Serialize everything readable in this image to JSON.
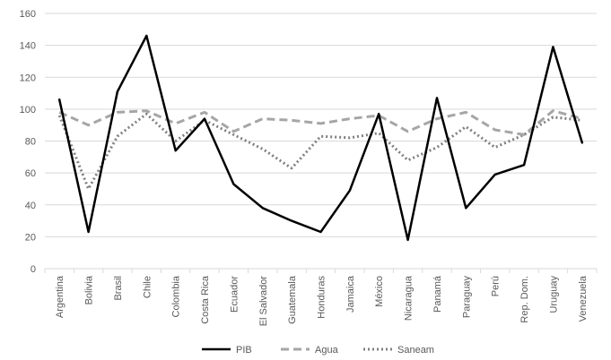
{
  "chart_data": {
    "type": "line",
    "title": "",
    "xlabel": "",
    "ylabel": "",
    "ylim": [
      0,
      160
    ],
    "yticks": [
      0,
      20,
      40,
      60,
      80,
      100,
      120,
      140,
      160
    ],
    "grid": true,
    "legend_position": "bottom",
    "categories": [
      "Argentina",
      "Bolivia",
      "Brasil",
      "Chile",
      "Colombia",
      "Costa Rica",
      "Ecuador",
      "El Salvador",
      "Guatemala",
      "Honduras",
      "Jamaica",
      "México",
      "Nicaragua",
      "Panamá",
      "Paraguay",
      "Perú",
      "Rep. Dom.",
      "Uruguay",
      "Venezuela"
    ],
    "series": [
      {
        "name": "PIB",
        "color": "#000000",
        "style": "solid",
        "values": [
          106,
          23,
          111,
          146,
          74,
          94,
          53,
          38,
          30,
          23,
          49,
          97,
          18,
          107,
          38,
          59,
          65,
          139,
          79
        ]
      },
      {
        "name": "Agua",
        "color": "#a6a6a6",
        "style": "dashed",
        "values": [
          98,
          90,
          98,
          99,
          91,
          98,
          86,
          94,
          93,
          91,
          94,
          96,
          86,
          94,
          98,
          87,
          84,
          99,
          94
        ]
      },
      {
        "name": "Saneam",
        "color": "#808080",
        "style": "dotted",
        "values": [
          96,
          50,
          83,
          97,
          80,
          93,
          84,
          75,
          63,
          83,
          82,
          85,
          68,
          76,
          89,
          76,
          84,
          95,
          93
        ]
      }
    ]
  }
}
